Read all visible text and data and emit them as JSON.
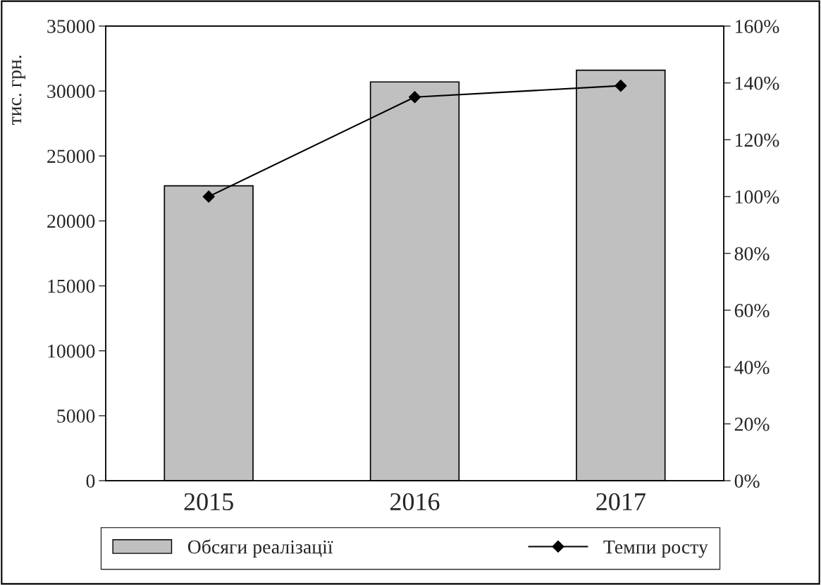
{
  "chart_data": {
    "type": "bar",
    "ylabel": "тис. грн.",
    "categories": [
      "2015",
      "2016",
      "2017"
    ],
    "series": [
      {
        "name": "Обсяги реалізації",
        "color": "#c0c0c0",
        "values": [
          22700,
          30700,
          31600
        ]
      },
      {
        "name": "Темпи росту",
        "type": "line",
        "axis": "y2",
        "color": "#000000",
        "marker": "diamond",
        "values": [
          100,
          135,
          139
        ]
      }
    ],
    "ylim": [
      0,
      35000
    ],
    "yticks": [
      0,
      5000,
      10000,
      15000,
      20000,
      25000,
      30000,
      35000
    ],
    "y2lim": [
      0,
      160
    ],
    "y2ticks": [
      {
        "value": 0,
        "label": "0%"
      },
      {
        "value": 20,
        "label": "20%"
      },
      {
        "value": 40,
        "label": "40%"
      },
      {
        "value": 60,
        "label": "60%"
      },
      {
        "value": 80,
        "label": "80%"
      },
      {
        "value": 100,
        "label": "100%"
      },
      {
        "value": 120,
        "label": "120%"
      },
      {
        "value": 140,
        "label": "140%"
      },
      {
        "value": 160,
        "label": "160%"
      }
    ],
    "grid": false,
    "legend": "bottom"
  }
}
